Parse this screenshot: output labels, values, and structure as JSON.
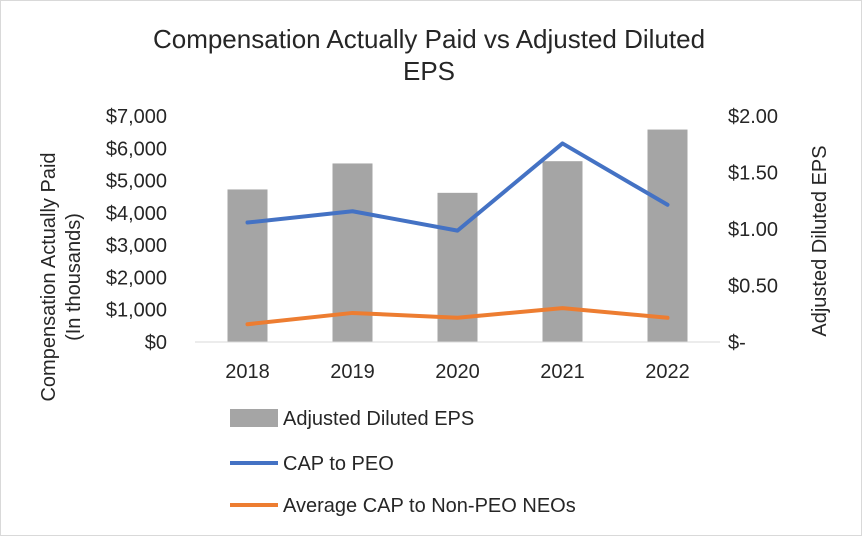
{
  "chart_data": {
    "type": "bar",
    "title_line1": "Compensation Actually Paid vs Adjusted Diluted",
    "title_line2": "EPS",
    "categories": [
      "2018",
      "2019",
      "2020",
      "2021",
      "2022"
    ],
    "y_left": {
      "label_line1": "Compensation  Actually Paid",
      "label_line2": "(In thousands)",
      "ylim": [
        0,
        7000
      ],
      "ticks": [
        0,
        1000,
        2000,
        3000,
        4000,
        5000,
        6000,
        7000
      ],
      "tick_labels": [
        "$0",
        "$1,000",
        "$2,000",
        "$3,000",
        "$4,000",
        "$5,000",
        "$6,000",
        "$7,000"
      ]
    },
    "y_right": {
      "label": "Adjusted Diluted  EPS",
      "ylim": [
        0,
        2.0
      ],
      "ticks": [
        0,
        0.5,
        1.0,
        1.5,
        2.0
      ],
      "tick_labels": [
        "$-",
        "$0.50",
        "$1.00",
        "$1.50",
        "$2.00"
      ]
    },
    "series": [
      {
        "name": "Adjusted Diluted EPS",
        "type": "bar",
        "axis": "right",
        "color": "#a5a5a5",
        "values": [
          1.35,
          1.58,
          1.32,
          1.6,
          1.88
        ]
      },
      {
        "name": "CAP to PEO",
        "type": "line",
        "axis": "left",
        "color": "#4472c4",
        "values": [
          3700,
          4050,
          3450,
          6150,
          4250
        ]
      },
      {
        "name": "Average CAP to Non-PEO NEOs",
        "type": "line",
        "axis": "left",
        "color": "#ed7d31",
        "values": [
          550,
          900,
          750,
          1050,
          750
        ]
      }
    ],
    "legend": [
      "Adjusted Diluted EPS",
      "CAP to PEO",
      "Average CAP to Non-PEO NEOs"
    ],
    "legend_position": "bottom"
  }
}
